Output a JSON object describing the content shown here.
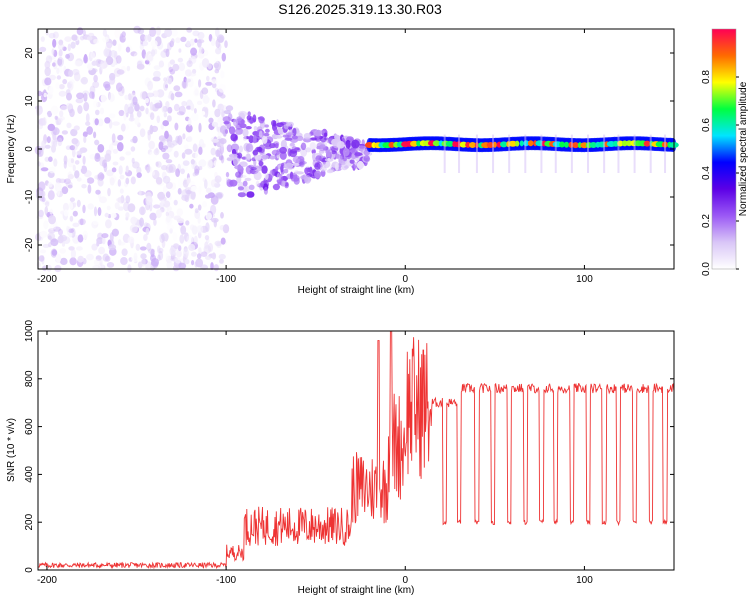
{
  "title": "S126.2025.319.13.30.R03",
  "chart_data": [
    {
      "type": "heatmap",
      "name": "spectrogram",
      "title": "S126.2025.319.13.30.R03",
      "xlabel": "Height of straight line (km)",
      "ylabel": "Frequency (Hz)",
      "xlim": [
        -205,
        150
      ],
      "ylim": [
        -25,
        25
      ],
      "xticks": [
        -200,
        -100,
        0,
        100
      ],
      "yticks": [
        -20,
        -10,
        0,
        10,
        20
      ],
      "colorbar": {
        "label": "Normalized spectral amplitude",
        "range": [
          0,
          1
        ],
        "ticks": [
          0.0,
          0.2,
          0.4,
          0.6,
          0.8
        ],
        "tick_labels": [
          "0.0",
          "0.2",
          "0.4",
          "0.6",
          "0.8"
        ],
        "colors": [
          "#ffffff",
          "#d9c6f7",
          "#9b59f5",
          "#5c00e6",
          "#0000ff",
          "#00e5ff",
          "#00ff40",
          "#ffff00",
          "#ff6a00",
          "#ff0055"
        ]
      },
      "regions": [
        {
          "description_range_km": [
            -205,
            -100
          ],
          "frequency_hz": [
            -25,
            25
          ],
          "amplitude": [
            0.0,
            0.15
          ]
        },
        {
          "description_range_km": [
            -100,
            -20
          ],
          "frequency_hz": [
            -8,
            6
          ],
          "amplitude": [
            0.05,
            0.3
          ]
        },
        {
          "description_range_km": [
            -20,
            150
          ],
          "frequency_hz": [
            0,
            2
          ],
          "amplitude": [
            0.2,
            1.0
          ]
        }
      ]
    },
    {
      "type": "line",
      "name": "snr",
      "xlabel": "Height of straight line (km)",
      "ylabel": "SNR (10 * v/v)",
      "xlim": [
        -205,
        150
      ],
      "ylim": [
        0,
        1000
      ],
      "xticks": [
        -200,
        -100,
        0,
        100
      ],
      "yticks": [
        0,
        200,
        400,
        600,
        800,
        1000
      ],
      "color": "#ee3333",
      "series": [
        {
          "name": "SNR",
          "segments": [
            {
              "x": [
                -205,
                -100
              ],
              "level": 20
            },
            {
              "x": [
                -100,
                -90
              ],
              "level": 60
            },
            {
              "x": [
                -90,
                -30
              ],
              "level": 150
            },
            {
              "x": [
                -30,
                -10
              ],
              "level": 280
            },
            {
              "x": [
                -10,
                0
              ],
              "level": 430
            },
            {
              "x": [
                0,
                15
              ],
              "level": 560
            },
            {
              "x": [
                15,
                30
              ],
              "level": 700
            },
            {
              "x": [
                30,
                150
              ],
              "level": 760
            }
          ],
          "spikes": [
            {
              "x": -8,
              "y": 1000
            },
            {
              "x": -15,
              "y": 960
            },
            {
              "x": 10,
              "y": 920
            }
          ],
          "dips_x": [
            22,
            30,
            40,
            49,
            58,
            67,
            76,
            84,
            93,
            102,
            111,
            119,
            128,
            137,
            145
          ],
          "dip_level": 200
        }
      ]
    }
  ]
}
